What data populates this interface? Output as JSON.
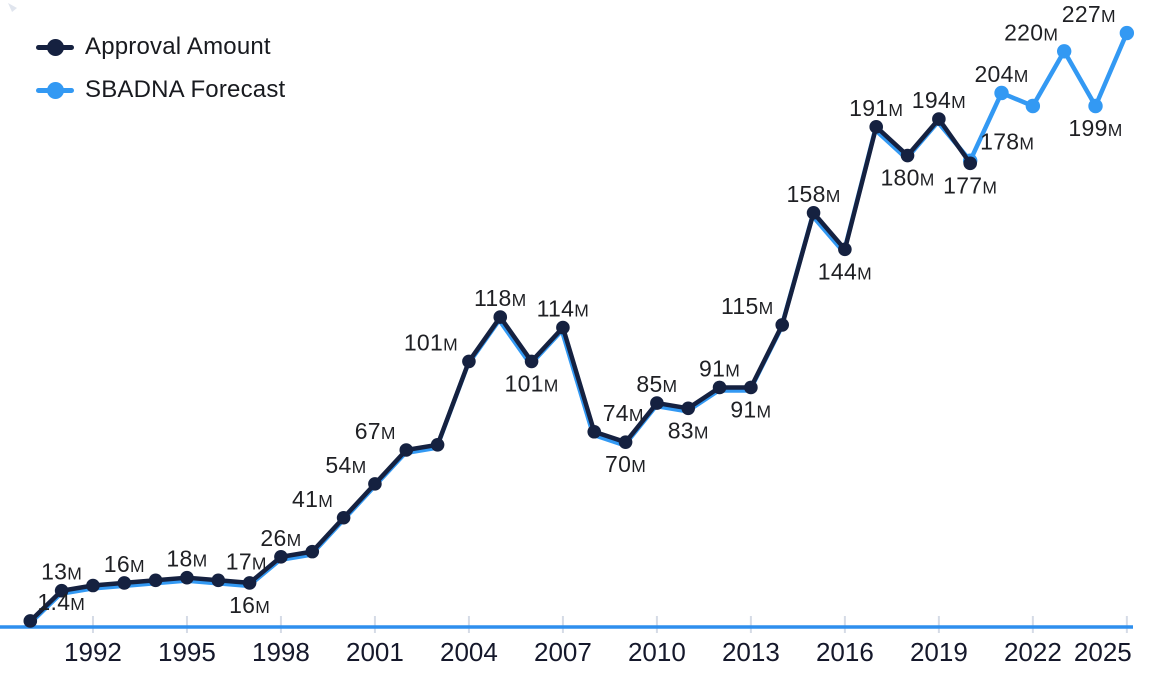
{
  "legend": {
    "items": [
      {
        "label": "Approval Amount",
        "color": "#152140"
      },
      {
        "label": "SBADNA Forecast",
        "color": "#3399f3"
      }
    ]
  },
  "axis": {
    "line_color": "#2e8fee",
    "tick_mark_color": "#d5dbe6",
    "tick_label_color": "#15182b",
    "tick_labels": [
      "1992",
      "1995",
      "1998",
      "2001",
      "2004",
      "2007",
      "2010",
      "2013",
      "2016",
      "2019",
      "2022",
      "2025"
    ]
  },
  "chart_data": {
    "type": "line",
    "title": "",
    "xlabel": "",
    "ylabel": "",
    "x_range": [
      1990,
      2025
    ],
    "ylim_m": [
      0,
      235
    ],
    "grid": false,
    "legend_position": "top-left",
    "x_ticks": [
      1992,
      1995,
      1998,
      2001,
      2004,
      2007,
      2010,
      2013,
      2016,
      2019,
      2022,
      2025
    ],
    "label_color": "#1f2024",
    "series": [
      {
        "name": "Approval Amount",
        "color": "#152140",
        "years": [
          1990,
          1991,
          1992,
          1993,
          1994,
          1995,
          1996,
          1997,
          1998,
          1999,
          2000,
          2001,
          2002,
          2003,
          2004,
          2005,
          2006,
          2007,
          2008,
          2009,
          2010,
          2011,
          2012,
          2013,
          2014,
          2015,
          2016,
          2017,
          2018,
          2019,
          2020
        ],
        "values_m": [
          1.4,
          13,
          15,
          16,
          17,
          18,
          17,
          16,
          26,
          28,
          41,
          54,
          67,
          69,
          101,
          118,
          101,
          114,
          74,
          70,
          85,
          83,
          91,
          91,
          115,
          158,
          144,
          191,
          180,
          194,
          177
        ],
        "point_labels": [
          {
            "year": 1990,
            "text": "1.4M",
            "pos": "above",
            "dx": 31
          },
          {
            "year": 1991,
            "text": "13M",
            "pos": "above",
            "dx": 0
          },
          {
            "year": 1993,
            "text": "16M",
            "pos": "above",
            "dx": 0
          },
          {
            "year": 1995,
            "text": "18M",
            "pos": "above",
            "dx": 0
          },
          {
            "year": 1996,
            "text": "17M",
            "pos": "above",
            "dx": 28
          },
          {
            "year": 1997,
            "text": "16M",
            "pos": "below",
            "dx": 0
          },
          {
            "year": 1998,
            "text": "26M",
            "pos": "above",
            "dx": 0
          },
          {
            "year": 2000,
            "text": "41M",
            "pos": "above",
            "dx": -31
          },
          {
            "year": 2001,
            "text": "54M",
            "pos": "above",
            "dx": -29
          },
          {
            "year": 2002,
            "text": "67M",
            "pos": "above",
            "dx": -31
          },
          {
            "year": 2004,
            "text": "101M",
            "pos": "above",
            "dx": -38
          },
          {
            "year": 2005,
            "text": "118M",
            "pos": "above",
            "dx": 0
          },
          {
            "year": 2006,
            "text": "101M",
            "pos": "below",
            "dx": 0
          },
          {
            "year": 2007,
            "text": "114M",
            "pos": "above",
            "dx": 0
          },
          {
            "year": 2008,
            "text": "74M",
            "pos": "above",
            "dx": 29
          },
          {
            "year": 2009,
            "text": "70M",
            "pos": "below",
            "dx": 0
          },
          {
            "year": 2010,
            "text": "85M",
            "pos": "above",
            "dx": 0
          },
          {
            "year": 2011,
            "text": "83M",
            "pos": "below",
            "dx": 0
          },
          {
            "year": 2012,
            "text": "91M",
            "pos": "above",
            "dx": 0
          },
          {
            "year": 2013,
            "text": "91M",
            "pos": "below",
            "dx": 0
          },
          {
            "year": 2014,
            "text": "115M",
            "pos": "above",
            "dx": -35
          },
          {
            "year": 2015,
            "text": "158M",
            "pos": "above",
            "dx": 0
          },
          {
            "year": 2016,
            "text": "144M",
            "pos": "below",
            "dx": 0
          },
          {
            "year": 2017,
            "text": "191M",
            "pos": "above",
            "dx": 0
          },
          {
            "year": 2018,
            "text": "180M",
            "pos": "below",
            "dx": 0
          },
          {
            "year": 2019,
            "text": "194M",
            "pos": "above",
            "dx": 0
          },
          {
            "year": 2020,
            "text": "177M",
            "pos": "below",
            "dx": 0
          }
        ]
      },
      {
        "name": "SBADNA Forecast",
        "color": "#3399f3",
        "forecast_start_year": 2020,
        "years": [
          1990,
          1991,
          1992,
          1993,
          1994,
          1995,
          1996,
          1997,
          1998,
          1999,
          2000,
          2001,
          2002,
          2003,
          2004,
          2005,
          2006,
          2007,
          2008,
          2009,
          2010,
          2011,
          2012,
          2013,
          2014,
          2015,
          2016,
          2017,
          2018,
          2019,
          2020,
          2021,
          2022,
          2023,
          2024,
          2025
        ],
        "values_m": [
          1.4,
          13,
          15,
          16,
          17,
          18,
          17,
          16,
          26,
          28,
          41,
          54,
          67,
          69,
          101,
          118,
          101,
          114,
          74,
          70,
          85,
          83,
          91,
          91,
          115,
          158,
          144,
          191,
          180,
          194,
          178,
          204,
          199,
          220,
          199,
          227
        ],
        "point_labels": [
          {
            "year": 2020,
            "text": "178M",
            "pos": "above",
            "dx": 37
          },
          {
            "year": 2021,
            "text": "204M",
            "pos": "above",
            "dx": 0
          },
          {
            "year": 2023,
            "text": "220M",
            "pos": "above",
            "dx": -33
          },
          {
            "year": 2024,
            "text": "199M",
            "pos": "below",
            "dx": 0
          },
          {
            "year": 2025,
            "text": "227M",
            "pos": "above",
            "dx": -38
          }
        ]
      }
    ]
  }
}
